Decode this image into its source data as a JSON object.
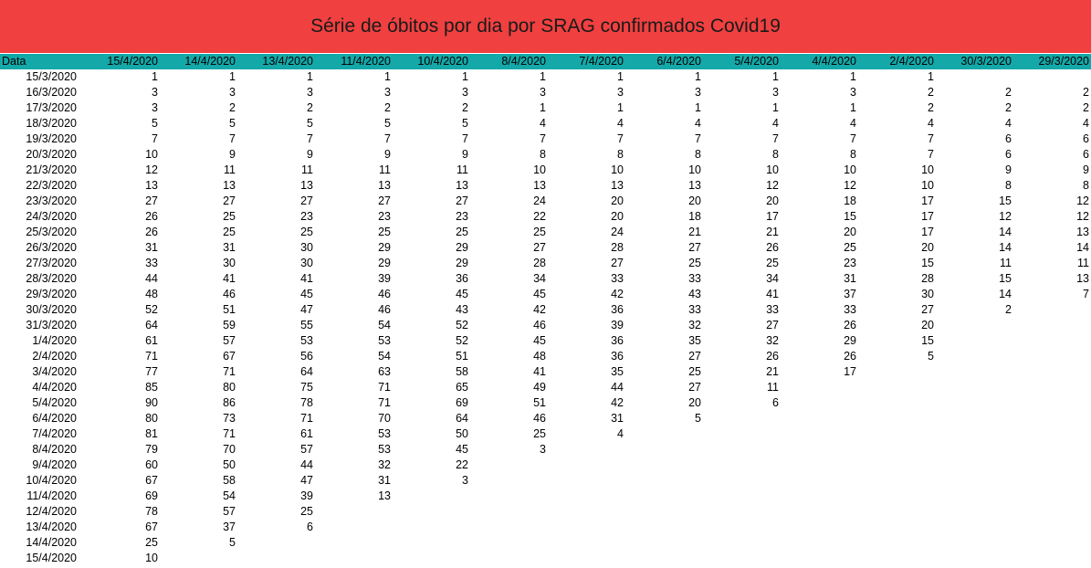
{
  "title": "Série de óbitos por dia por SRAG confirmados Covid19",
  "table": {
    "row_header": "Data",
    "columns": [
      "15/4/2020",
      "14/4/2020",
      "13/4/2020",
      "11/4/2020",
      "10/4/2020",
      "8/4/2020",
      "7/4/2020",
      "6/4/2020",
      "5/4/2020",
      "4/4/2020",
      "2/4/2020",
      "30/3/2020",
      "29/3/2020"
    ],
    "rows": [
      {
        "date": "15/3/2020",
        "values": [
          "1",
          "1",
          "1",
          "1",
          "1",
          "1",
          "1",
          "1",
          "1",
          "1",
          "1",
          "",
          ""
        ]
      },
      {
        "date": "16/3/2020",
        "values": [
          "3",
          "3",
          "3",
          "3",
          "3",
          "3",
          "3",
          "3",
          "3",
          "3",
          "2",
          "2",
          "2"
        ]
      },
      {
        "date": "17/3/2020",
        "values": [
          "3",
          "2",
          "2",
          "2",
          "2",
          "1",
          "1",
          "1",
          "1",
          "1",
          "2",
          "2",
          "2"
        ]
      },
      {
        "date": "18/3/2020",
        "values": [
          "5",
          "5",
          "5",
          "5",
          "5",
          "4",
          "4",
          "4",
          "4",
          "4",
          "4",
          "4",
          "4"
        ]
      },
      {
        "date": "19/3/2020",
        "values": [
          "7",
          "7",
          "7",
          "7",
          "7",
          "7",
          "7",
          "7",
          "7",
          "7",
          "7",
          "6",
          "6"
        ]
      },
      {
        "date": "20/3/2020",
        "values": [
          "10",
          "9",
          "9",
          "9",
          "9",
          "8",
          "8",
          "8",
          "8",
          "8",
          "7",
          "6",
          "6"
        ]
      },
      {
        "date": "21/3/2020",
        "values": [
          "12",
          "11",
          "11",
          "11",
          "11",
          "10",
          "10",
          "10",
          "10",
          "10",
          "10",
          "9",
          "9"
        ]
      },
      {
        "date": "22/3/2020",
        "values": [
          "13",
          "13",
          "13",
          "13",
          "13",
          "13",
          "13",
          "13",
          "12",
          "12",
          "10",
          "8",
          "8"
        ]
      },
      {
        "date": "23/3/2020",
        "values": [
          "27",
          "27",
          "27",
          "27",
          "27",
          "24",
          "20",
          "20",
          "20",
          "18",
          "17",
          "15",
          "12"
        ]
      },
      {
        "date": "24/3/2020",
        "values": [
          "26",
          "25",
          "23",
          "23",
          "23",
          "22",
          "20",
          "18",
          "17",
          "15",
          "17",
          "12",
          "12"
        ]
      },
      {
        "date": "25/3/2020",
        "values": [
          "26",
          "25",
          "25",
          "25",
          "25",
          "25",
          "24",
          "21",
          "21",
          "20",
          "17",
          "14",
          "13"
        ]
      },
      {
        "date": "26/3/2020",
        "values": [
          "31",
          "31",
          "30",
          "29",
          "29",
          "27",
          "28",
          "27",
          "26",
          "25",
          "20",
          "14",
          "14"
        ]
      },
      {
        "date": "27/3/2020",
        "values": [
          "33",
          "30",
          "30",
          "29",
          "29",
          "28",
          "27",
          "25",
          "25",
          "23",
          "15",
          "11",
          "11"
        ]
      },
      {
        "date": "28/3/2020",
        "values": [
          "44",
          "41",
          "41",
          "39",
          "36",
          "34",
          "33",
          "33",
          "34",
          "31",
          "28",
          "15",
          "13"
        ]
      },
      {
        "date": "29/3/2020",
        "values": [
          "48",
          "46",
          "45",
          "46",
          "45",
          "45",
          "42",
          "43",
          "41",
          "37",
          "30",
          "14",
          "7"
        ]
      },
      {
        "date": "30/3/2020",
        "values": [
          "52",
          "51",
          "47",
          "46",
          "43",
          "42",
          "36",
          "33",
          "33",
          "33",
          "27",
          "2",
          ""
        ]
      },
      {
        "date": "31/3/2020",
        "values": [
          "64",
          "59",
          "55",
          "54",
          "52",
          "46",
          "39",
          "32",
          "27",
          "26",
          "20",
          "",
          ""
        ]
      },
      {
        "date": "1/4/2020",
        "values": [
          "61",
          "57",
          "53",
          "53",
          "52",
          "45",
          "36",
          "35",
          "32",
          "29",
          "15",
          "",
          ""
        ]
      },
      {
        "date": "2/4/2020",
        "values": [
          "71",
          "67",
          "56",
          "54",
          "51",
          "48",
          "36",
          "27",
          "26",
          "26",
          "5",
          "",
          ""
        ]
      },
      {
        "date": "3/4/2020",
        "values": [
          "77",
          "71",
          "64",
          "63",
          "58",
          "41",
          "35",
          "25",
          "21",
          "17",
          "",
          "",
          ""
        ]
      },
      {
        "date": "4/4/2020",
        "values": [
          "85",
          "80",
          "75",
          "71",
          "65",
          "49",
          "44",
          "27",
          "11",
          "",
          "",
          "",
          ""
        ]
      },
      {
        "date": "5/4/2020",
        "values": [
          "90",
          "86",
          "78",
          "71",
          "69",
          "51",
          "42",
          "20",
          "6",
          "",
          "",
          "",
          ""
        ]
      },
      {
        "date": "6/4/2020",
        "values": [
          "80",
          "73",
          "71",
          "70",
          "64",
          "46",
          "31",
          "5",
          "",
          "",
          "",
          "",
          ""
        ]
      },
      {
        "date": "7/4/2020",
        "values": [
          "81",
          "71",
          "61",
          "53",
          "50",
          "25",
          "4",
          "",
          "",
          "",
          "",
          "",
          ""
        ]
      },
      {
        "date": "8/4/2020",
        "values": [
          "79",
          "70",
          "57",
          "53",
          "45",
          "3",
          "",
          "",
          "",
          "",
          "",
          "",
          ""
        ]
      },
      {
        "date": "9/4/2020",
        "values": [
          "60",
          "50",
          "44",
          "32",
          "22",
          "",
          "",
          "",
          "",
          "",
          "",
          "",
          ""
        ]
      },
      {
        "date": "10/4/2020",
        "values": [
          "67",
          "58",
          "47",
          "31",
          "3",
          "",
          "",
          "",
          "",
          "",
          "",
          "",
          ""
        ]
      },
      {
        "date": "11/4/2020",
        "values": [
          "69",
          "54",
          "39",
          "13",
          "",
          "",
          "",
          "",
          "",
          "",
          "",
          "",
          ""
        ]
      },
      {
        "date": "12/4/2020",
        "values": [
          "78",
          "57",
          "25",
          "",
          "",
          "",
          "",
          "",
          "",
          "",
          "",
          "",
          ""
        ]
      },
      {
        "date": "13/4/2020",
        "values": [
          "67",
          "37",
          "6",
          "",
          "",
          "",
          "",
          "",
          "",
          "",
          "",
          "",
          ""
        ]
      },
      {
        "date": "14/4/2020",
        "values": [
          "25",
          "5",
          "",
          "",
          "",
          "",
          "",
          "",
          "",
          "",
          "",
          "",
          ""
        ]
      },
      {
        "date": "15/4/2020",
        "values": [
          "10",
          "",
          "",
          "",
          "",
          "",
          "",
          "",
          "",
          "",
          "",
          "",
          ""
        ]
      }
    ]
  }
}
